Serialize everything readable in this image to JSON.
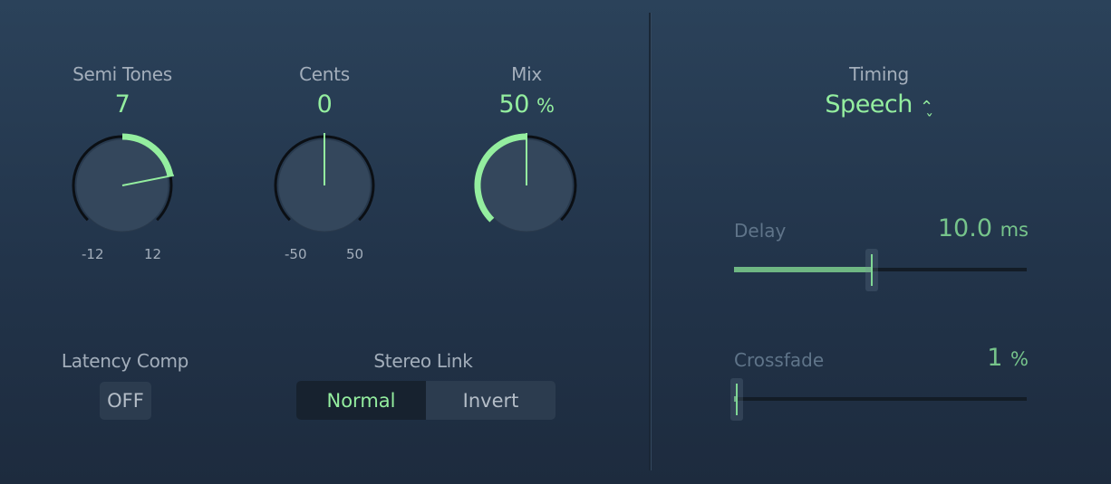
{
  "knobs": [
    {
      "label": "Semi Tones",
      "value": "7",
      "unit": "",
      "min_label": "-12",
      "max_label": "12",
      "min": -12,
      "max": 12,
      "current": 7,
      "mode": "bipolar"
    },
    {
      "label": "Cents",
      "value": "0",
      "unit": "",
      "min_label": "-50",
      "max_label": "50",
      "min": -50,
      "max": 50,
      "current": 0,
      "mode": "bipolar"
    },
    {
      "label": "Mix",
      "value": "50",
      "unit": "%",
      "min": 0,
      "max": 100,
      "current": 50,
      "mode": "unipolar"
    }
  ],
  "latency": {
    "label": "Latency Comp",
    "button": "OFF"
  },
  "stereo_link": {
    "label": "Stereo Link",
    "options": [
      "Normal",
      "Invert"
    ],
    "selected": "Normal"
  },
  "timing": {
    "label": "Timing",
    "value": "Speech",
    "icon": "up-down-chevron-icon"
  },
  "delay": {
    "label": "Delay",
    "value": "10.0",
    "unit": "ms",
    "fraction": 0.47
  },
  "crossfade": {
    "label": "Crossfade",
    "value": "1",
    "unit": "%",
    "fraction": 0.01
  },
  "colors": {
    "accent": "#94ee9f",
    "background": "#263a50"
  }
}
